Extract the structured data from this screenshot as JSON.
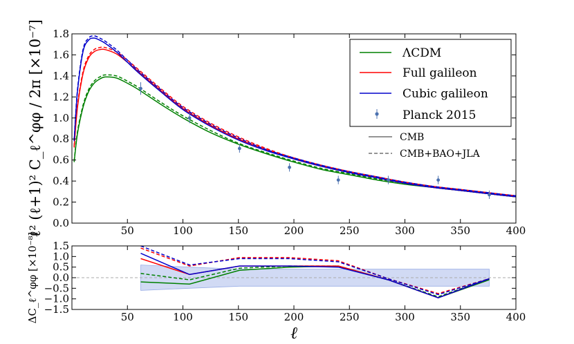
{
  "chart_data": [
    {
      "type": "line",
      "name": "lensing-power-spectrum",
      "xlabel": "ℓ",
      "ylabel": "ℓ² (ℓ+1)² C_ℓ^φφ / 2π [×10⁻⁷]",
      "xlim": [
        0,
        400
      ],
      "ylim": [
        0.0,
        1.8
      ],
      "xticks": [
        50,
        100,
        150,
        200,
        250,
        300,
        350,
        400
      ],
      "yticks": [
        0.0,
        0.2,
        0.4,
        0.6,
        0.8,
        1.0,
        1.2,
        1.4,
        1.6,
        1.8
      ],
      "x": [
        2,
        5,
        10,
        15,
        20,
        25,
        30,
        40,
        50,
        60,
        80,
        100,
        125,
        150,
        175,
        200,
        225,
        250,
        275,
        300,
        325,
        350,
        375,
        400
      ],
      "series": [
        {
          "name": "ΛCDM",
          "style": "CMB",
          "color": "#008000",
          "values": [
            0.58,
            0.85,
            1.1,
            1.25,
            1.33,
            1.37,
            1.39,
            1.38,
            1.33,
            1.27,
            1.13,
            1.0,
            0.86,
            0.75,
            0.66,
            0.58,
            0.51,
            0.46,
            0.41,
            0.37,
            0.34,
            0.31,
            0.28,
            0.25
          ]
        },
        {
          "name": "ΛCDM",
          "style": "CMB+BAO+JLA",
          "color": "#008000",
          "values": [
            0.59,
            0.87,
            1.12,
            1.27,
            1.35,
            1.39,
            1.41,
            1.4,
            1.35,
            1.29,
            1.15,
            1.02,
            0.88,
            0.76,
            0.67,
            0.59,
            0.52,
            0.47,
            0.42,
            0.38,
            0.34,
            0.31,
            0.28,
            0.25
          ]
        },
        {
          "name": "Full galileon",
          "style": "CMB",
          "color": "#ff0000",
          "values": [
            0.72,
            1.1,
            1.42,
            1.57,
            1.63,
            1.65,
            1.65,
            1.61,
            1.53,
            1.44,
            1.26,
            1.09,
            0.93,
            0.8,
            0.7,
            0.61,
            0.54,
            0.48,
            0.43,
            0.38,
            0.34,
            0.31,
            0.28,
            0.25
          ]
        },
        {
          "name": "Full galileon",
          "style": "CMB+BAO+JLA",
          "color": "#ff0000",
          "values": [
            0.73,
            1.12,
            1.44,
            1.59,
            1.65,
            1.67,
            1.67,
            1.63,
            1.55,
            1.46,
            1.28,
            1.11,
            0.95,
            0.82,
            0.71,
            0.62,
            0.55,
            0.49,
            0.44,
            0.39,
            0.35,
            0.32,
            0.29,
            0.26
          ]
        },
        {
          "name": "Cubic galileon",
          "style": "CMB",
          "color": "#0000cc",
          "values": [
            0.78,
            1.25,
            1.63,
            1.74,
            1.76,
            1.74,
            1.71,
            1.63,
            1.53,
            1.43,
            1.25,
            1.08,
            0.92,
            0.79,
            0.69,
            0.61,
            0.54,
            0.48,
            0.43,
            0.38,
            0.34,
            0.31,
            0.28,
            0.25
          ]
        },
        {
          "name": "Cubic galileon",
          "style": "CMB+BAO+JLA",
          "color": "#0000cc",
          "values": [
            0.79,
            1.27,
            1.65,
            1.76,
            1.78,
            1.76,
            1.73,
            1.65,
            1.55,
            1.45,
            1.27,
            1.1,
            0.94,
            0.81,
            0.7,
            0.62,
            0.55,
            0.49,
            0.44,
            0.39,
            0.35,
            0.32,
            0.29,
            0.26
          ]
        }
      ],
      "points": {
        "name": "Planck 2015",
        "color": "#4c72b0",
        "x": [
          62,
          106,
          151,
          196,
          240,
          285,
          330,
          376
        ],
        "y": [
          1.28,
          1.0,
          0.71,
          0.53,
          0.41,
          0.41,
          0.41,
          0.27
        ],
        "err": [
          0.06,
          0.05,
          0.04,
          0.04,
          0.04,
          0.04,
          0.04,
          0.04
        ]
      },
      "legend": {
        "position": "top-right",
        "entries": [
          "ΛCDM",
          "Full galileon",
          "Cubic galileon",
          "Planck 2015"
        ],
        "style_entries": [
          "CMB",
          "CMB+BAO+JLA"
        ]
      }
    },
    {
      "type": "line",
      "name": "residuals",
      "xlabel": "ℓ",
      "ylabel": "ΔC_ℓ^φφ [×10⁻⁸]",
      "xlim": [
        0,
        400
      ],
      "ylim": [
        -1.5,
        1.5
      ],
      "xticks": [
        50,
        100,
        150,
        200,
        250,
        300,
        350,
        400
      ],
      "yticks": [
        -1.5,
        -1.0,
        -0.5,
        0.0,
        0.5,
        1.0,
        1.5
      ],
      "x": [
        62,
        106,
        151,
        196,
        240,
        285,
        330,
        376
      ],
      "band": {
        "color": "#9aaee6",
        "lower": [
          -0.6,
          -0.5,
          -0.4,
          -0.4,
          -0.4,
          -0.4,
          -0.4,
          -0.4
        ],
        "upper": [
          0.6,
          0.5,
          0.4,
          0.4,
          0.4,
          0.4,
          0.4,
          0.4
        ]
      },
      "series": [
        {
          "name": "ΛCDM",
          "style": "CMB",
          "color": "#008000",
          "values": [
            -0.2,
            -0.3,
            0.35,
            0.5,
            0.55,
            -0.1,
            -0.95,
            -0.1
          ]
        },
        {
          "name": "ΛCDM",
          "style": "CMB+BAO+JLA",
          "color": "#008000",
          "values": [
            0.2,
            -0.1,
            0.45,
            0.55,
            0.55,
            -0.1,
            -0.9,
            -0.05
          ]
        },
        {
          "name": "Full galileon",
          "style": "CMB",
          "color": "#ff0000",
          "values": [
            0.9,
            0.15,
            0.55,
            0.55,
            0.55,
            -0.1,
            -0.95,
            -0.05
          ]
        },
        {
          "name": "Full galileon",
          "style": "CMB+BAO+JLA",
          "color": "#ff0000",
          "values": [
            1.4,
            0.55,
            0.95,
            0.95,
            0.8,
            -0.05,
            -0.75,
            -0.05
          ]
        },
        {
          "name": "Cubic galileon",
          "style": "CMB",
          "color": "#0000cc",
          "values": [
            1.15,
            0.15,
            0.55,
            0.55,
            0.5,
            -0.1,
            -0.95,
            -0.05
          ]
        },
        {
          "name": "Cubic galileon",
          "style": "CMB+BAO+JLA",
          "color": "#0000cc",
          "values": [
            1.5,
            0.6,
            0.9,
            0.9,
            0.75,
            -0.05,
            -0.8,
            -0.05
          ]
        }
      ]
    }
  ]
}
